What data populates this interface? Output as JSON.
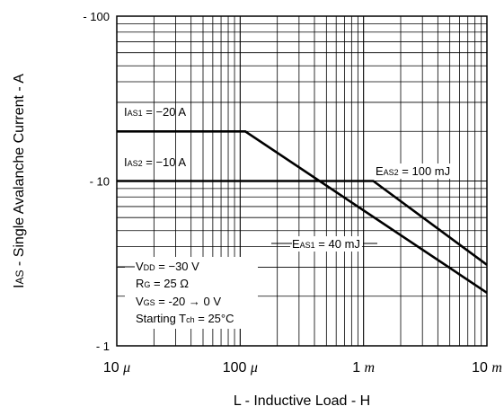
{
  "chart_data": {
    "type": "line",
    "xscale": "log",
    "yscale": "log",
    "xlim": [
      1e-05,
      0.01
    ],
    "ylim": [
      1,
      100
    ],
    "grid": true,
    "xlabel": "L - Inductive Load - H",
    "ylabel": {
      "main": "I",
      "sub": "AS",
      "rest": " - Single Avalanche Current - A"
    },
    "xtick_labels": [
      {
        "value": 1e-05,
        "num": "10",
        "unit": "μ"
      },
      {
        "value": 0.0001,
        "num": "100",
        "unit": "μ"
      },
      {
        "value": 0.001,
        "num": "1",
        "unit": "m"
      },
      {
        "value": 0.01,
        "num": "10",
        "unit": "m"
      }
    ],
    "ytick_labels": [
      {
        "value": 1,
        "label": "- 1"
      },
      {
        "value": 10,
        "label": "- 10"
      },
      {
        "value": 100,
        "label": "- 100"
      }
    ],
    "series": [
      {
        "points": [
          [
            1e-05,
            20
          ],
          [
            0.00011,
            20
          ],
          [
            0.01,
            2.1
          ]
        ]
      },
      {
        "points": [
          [
            1e-05,
            10
          ],
          [
            0.0012,
            10
          ],
          [
            0.01,
            3.1
          ]
        ]
      }
    ],
    "annotations": [
      {
        "name": "ias1-label",
        "main": "I",
        "sub": "AS1",
        "rest": " = −20 A"
      },
      {
        "name": "ias2-label",
        "main": "I",
        "sub": "AS2",
        "rest": " = −10 A"
      },
      {
        "name": "eas2-label",
        "main": "E",
        "sub": "AS2",
        "rest": " = 100 mJ"
      },
      {
        "name": "eas1-label",
        "main": "E",
        "sub": "AS1",
        "rest": " = 40 mJ"
      }
    ],
    "conditions": [
      {
        "main": "V",
        "sub": "DD",
        "rest": " = −30 V"
      },
      {
        "main": "R",
        "sub": "G",
        "rest": " = 25 Ω"
      },
      {
        "main": "V",
        "sub": "GS",
        "rest": " = -20 → 0 V"
      },
      {
        "main": "Starting T",
        "sub": "ch",
        "rest": " = 25°C"
      }
    ]
  }
}
